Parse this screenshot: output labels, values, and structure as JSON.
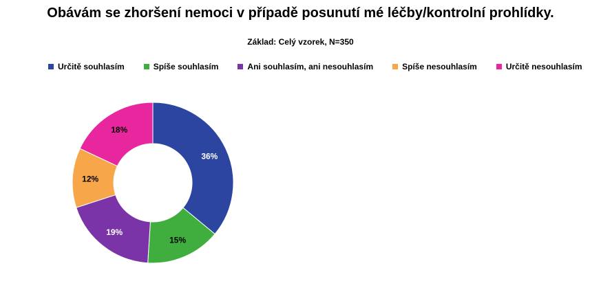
{
  "chart_data": {
    "type": "pie",
    "title": "Obávám se zhoršení nemoci v případě posunutí mé léčby/kontrolní prohlídky.",
    "subtitle": "Základ: Celý vzorek, N=350",
    "legend_position": "top",
    "categories": [
      "Určitě souhlasím",
      "Spíše souhlasím",
      "Ani souhlasím, ani nesouhlasím",
      "Spíše nesouhlasím",
      "Určitě nesouhlasím"
    ],
    "values": [
      36,
      15,
      19,
      12,
      18
    ],
    "data_labels": [
      "36%",
      "15%",
      "19%",
      "12%",
      "18%"
    ],
    "colors": [
      "#2B45A0",
      "#3FAE3F",
      "#7B34A8",
      "#F7A64A",
      "#E8279E"
    ],
    "label_colors": [
      "#ffffff",
      "#000000",
      "#ffffff",
      "#000000",
      "#000000"
    ],
    "donut": true
  }
}
